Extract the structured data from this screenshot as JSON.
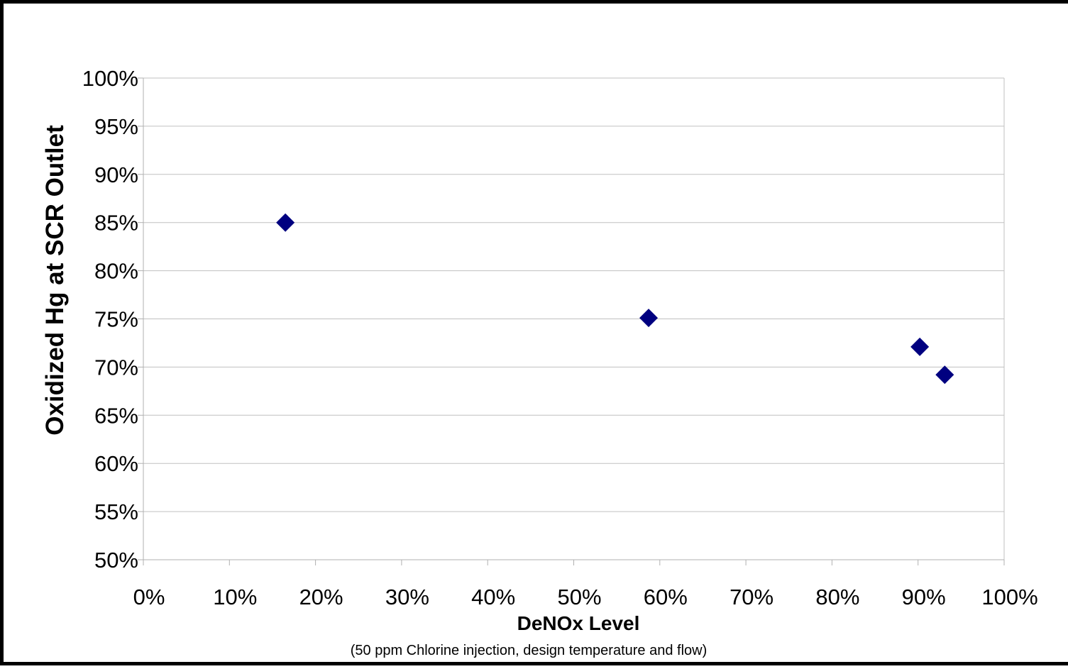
{
  "chart_data": {
    "type": "scatter",
    "title": "",
    "xlabel": "DeNOx Level",
    "ylabel": "Oxidized Hg at SCR Outlet",
    "annotation": "(50 ppm Chlorine injection, design temperature and flow)",
    "xlim": [
      0,
      100
    ],
    "ylim": [
      50,
      100
    ],
    "x_ticks": [
      0,
      10,
      20,
      30,
      40,
      50,
      60,
      70,
      80,
      90,
      100
    ],
    "y_ticks": [
      50,
      55,
      60,
      65,
      70,
      75,
      80,
      85,
      90,
      95,
      100
    ],
    "x_tick_labels": [
      "0%",
      "10%",
      "20%",
      "30%",
      "40%",
      "50%",
      "60%",
      "70%",
      "80%",
      "90%",
      "100%"
    ],
    "y_tick_labels": [
      "50%",
      "55%",
      "60%",
      "65%",
      "70%",
      "75%",
      "80%",
      "85%",
      "90%",
      "95%",
      "100%"
    ],
    "grid": "horizontal",
    "legend": "none",
    "marker": "diamond",
    "marker_color": "#000080",
    "grid_color": "#c0c0c0",
    "series": [
      {
        "x": [
          16.5,
          58.7,
          90.2,
          93.1
        ],
        "y": [
          85.0,
          75.1,
          72.1,
          69.2
        ]
      }
    ]
  }
}
